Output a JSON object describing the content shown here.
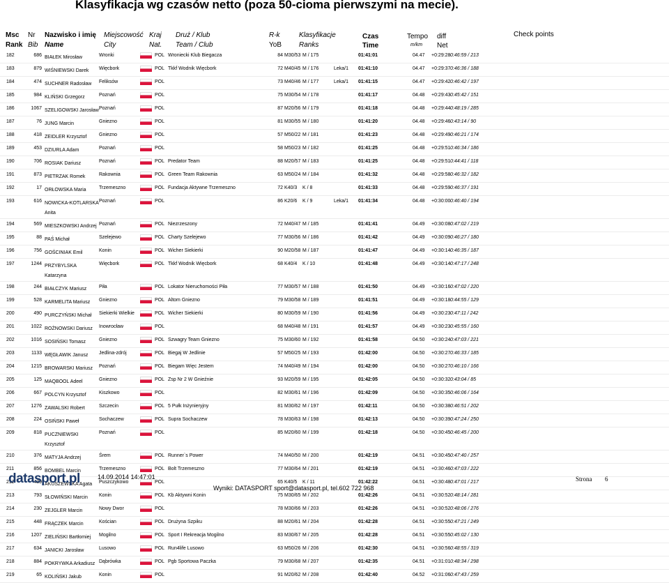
{
  "header": {
    "title": "Klasyfikacja wg czasów netto (poza 50-cioma pierwszymi na mecie)."
  },
  "columns": {
    "rank": {
      "top": "Msc",
      "bottom": "Rank"
    },
    "bib": {
      "top": "Nr",
      "bottom": "Bib"
    },
    "name": {
      "top": "Nazwisko i imię",
      "bottom": "Name"
    },
    "city": {
      "top": "Miejscowość",
      "bottom": "City"
    },
    "nat": {
      "top": "Kraj",
      "bottom": "Nat."
    },
    "club": {
      "top": "Druż / Klub",
      "bottom": "Team / Club"
    },
    "yob": {
      "top": "R-k",
      "bottom": "YoB"
    },
    "ranks": {
      "top": "Klasyfikacje",
      "bottom": "Ranks"
    },
    "time": {
      "top": "Czas",
      "bottom": "Time"
    },
    "pace": {
      "top": "Tempo",
      "bottom": "m/km"
    },
    "diff": {
      "top": "diff",
      "bottom": "Net"
    },
    "check": {
      "top": "Check points"
    }
  },
  "table": {
    "rows": [
      {
        "rank": "182",
        "bib": "686",
        "name": "BIAŁEK Mirosław",
        "city": "Wronki",
        "nat": "POL",
        "club": "Wroniecki Klub Biegacza",
        "yob": "84",
        "cat": "M30/53",
        "place": "M / 175",
        "time": "01:41:01",
        "pace": "04.47",
        "diff": "+0:29:28",
        "net": "0:46:59 / 213"
      },
      {
        "rank": "183",
        "bib": "879",
        "name": "WIŚNIEWSKI Darek",
        "city": "Więcbork",
        "nat": "POL",
        "club": "Tkkf Wodnik Więcbork",
        "yob": "72",
        "cat": "M40/45",
        "place": "M / 176",
        "note": "Leka/1",
        "time": "01:41:10",
        "pace": "04.47",
        "diff": "+0:29:37",
        "net": "0:46:36 / 188"
      },
      {
        "rank": "184",
        "bib": "474",
        "name": "SUCHNER Radosław",
        "city": "Feliksów",
        "nat": "POL",
        "yob": "73",
        "cat": "M40/46",
        "place": "M / 177",
        "note": "Leka/1",
        "time": "01:41:15",
        "pace": "04.47",
        "diff": "+0:29:42",
        "net": "0:46:42 / 197"
      },
      {
        "rank": "185",
        "bib": "984",
        "name": "KLIŃSKI Grzegorz",
        "city": "Poznań",
        "nat": "POL",
        "yob": "75",
        "cat": "M30/54",
        "place": "M / 178",
        "time": "01:41:17",
        "pace": "04.48",
        "diff": "+0:29:43",
        "net": "0:45:42 / 151"
      },
      {
        "rank": "186",
        "bib": "1067",
        "name": "SZELIGOWSKI Jarosław",
        "city": "Poznań",
        "nat": "POL",
        "yob": "87",
        "cat": "M20/56",
        "place": "M / 179",
        "time": "01:41:18",
        "pace": "04.48",
        "diff": "+0:29:44",
        "net": "0:48:19 / 285"
      },
      {
        "rank": "187",
        "bib": "76",
        "name": "JUNG Marcin",
        "city": "Gniezno",
        "nat": "POL",
        "yob": "81",
        "cat": "M30/55",
        "place": "M / 180",
        "time": "01:41:20",
        "pace": "04.48",
        "diff": "+0:29:46",
        "net": "0:43:14 / 90"
      },
      {
        "rank": "188",
        "bib": "418",
        "name": "ZEIDLER Krzysztof",
        "city": "Gniezno",
        "nat": "POL",
        "yob": "57",
        "cat": "M50/22",
        "place": "M / 181",
        "time": "01:41:23",
        "pace": "04.48",
        "diff": "+0:29:49",
        "net": "0:46:21 / 174"
      },
      {
        "rank": "189",
        "bib": "453",
        "name": "DZIURLA Adam",
        "city": "Poznań",
        "nat": "POL",
        "yob": "58",
        "cat": "M50/23",
        "place": "M / 182",
        "time": "01:41:25",
        "pace": "04.48",
        "diff": "+0:29:51",
        "net": "0:46:34 / 186"
      },
      {
        "rank": "190",
        "bib": "706",
        "name": "ROSIAK Dariusz",
        "city": "Poznań",
        "nat": "POL",
        "club": "Predator Team",
        "yob": "88",
        "cat": "M20/57",
        "place": "M / 183",
        "time": "01:41:25",
        "pace": "04.48",
        "diff": "+0:29:51",
        "net": "0:44:41 / 118"
      },
      {
        "rank": "191",
        "bib": "873",
        "name": "PIETRZAK Romek",
        "city": "Rakownia",
        "nat": "POL",
        "club": "Green Team Rakownia",
        "yob": "63",
        "cat": "M50/24",
        "place": "M / 184",
        "time": "01:41:32",
        "pace": "04.48",
        "diff": "+0:29:58",
        "net": "0:46:32 / 182"
      },
      {
        "rank": "192",
        "bib": "17",
        "name": "ORŁOWSKA Maria",
        "city": "Trzemeszno",
        "nat": "POL",
        "club": "Fundacja Aktywne Trzemeszno",
        "yob": "72",
        "cat": "K40/3",
        "place": "K / 8",
        "time": "01:41:33",
        "pace": "04.48",
        "diff": "+0:29:59",
        "net": "0:46:37 / 191"
      },
      {
        "rank": "193",
        "bib": "616",
        "name": "NOWICKA-KOTLARSKA Anita",
        "city": "Poznań",
        "nat": "POL",
        "yob": "86",
        "cat": "K20/6",
        "place": "K / 9",
        "note": "Leka/1",
        "time": "01:41:34",
        "pace": "04.48",
        "diff": "+0:30:00",
        "net": "0:46:40 / 194"
      },
      {
        "rank": "194",
        "bib": "569",
        "name": "MIESZKOWSKI Andrzej",
        "city": "Poznań",
        "nat": "POL",
        "club": "Niezrzeszony",
        "yob": "72",
        "cat": "M40/47",
        "place": "M / 185",
        "time": "01:41:41",
        "pace": "04.49",
        "diff": "+0:30:08",
        "net": "0:47:02 / 219"
      },
      {
        "rank": "195",
        "bib": "88",
        "name": "PAŚ Michał",
        "city": "Szelejewo",
        "nat": "POL",
        "club": "Charty Szelejewo",
        "yob": "77",
        "cat": "M30/56",
        "place": "M / 186",
        "time": "01:41:42",
        "pace": "04.49",
        "diff": "+0:30:09",
        "net": "0:46:27 / 180"
      },
      {
        "rank": "196",
        "bib": "756",
        "name": "GOŚCINIAK Emil",
        "city": "Konin",
        "nat": "POL",
        "club": "Wicher Siekierki",
        "yob": "90",
        "cat": "M20/58",
        "place": "M / 187",
        "time": "01:41:47",
        "pace": "04.49",
        "diff": "+0:30:14",
        "net": "0:46:35 / 187"
      },
      {
        "rank": "197",
        "bib": "1244",
        "name": "PRZYBYLSKA Katarzyna",
        "city": "Więcbork",
        "nat": "POL",
        "club": "Tkkf Wodnik Więcbork",
        "yob": "68",
        "cat": "K40/4",
        "place": "K / 10",
        "time": "01:41:48",
        "pace": "04.49",
        "diff": "+0:30:14",
        "net": "0:47:17 / 248"
      },
      {
        "rank": "198",
        "bib": "244",
        "name": "BIAŁCZYK Mariusz",
        "city": "Piła",
        "nat": "POL",
        "club": "Lokator Nieruchomości Piła",
        "yob": "77",
        "cat": "M30/57",
        "place": "M / 188",
        "time": "01:41:50",
        "pace": "04.49",
        "diff": "+0:30:16",
        "net": "0:47:02 / 220"
      },
      {
        "rank": "199",
        "bib": "528",
        "name": "KARMELITA Mariusz",
        "city": "Gniezno",
        "nat": "POL",
        "club": "Altom Gniezno",
        "yob": "79",
        "cat": "M30/58",
        "place": "M / 189",
        "time": "01:41:51",
        "pace": "04.49",
        "diff": "+0:30:18",
        "net": "0:44:55 / 129"
      },
      {
        "rank": "200",
        "bib": "490",
        "name": "PURCZYŃSKI Michał",
        "city": "Siekierki Wielkie",
        "nat": "POL",
        "club": "Wicher Siekierki",
        "yob": "80",
        "cat": "M30/59",
        "place": "M / 190",
        "time": "01:41:56",
        "pace": "04.49",
        "diff": "+0:30:23",
        "net": "0:47:11 / 242"
      },
      {
        "rank": "201",
        "bib": "1022",
        "name": "ROŻNOWSKI Dariusz",
        "city": "Inowrocław",
        "nat": "POL",
        "yob": "68",
        "cat": "M40/48",
        "place": "M / 191",
        "time": "01:41:57",
        "pace": "04.49",
        "diff": "+0:30:23",
        "net": "0:45:55 / 160"
      },
      {
        "rank": "202",
        "bib": "1016",
        "name": "SOSIŃSKI Tomasz",
        "city": "Gniezno",
        "nat": "POL",
        "club": "Szwagry Team Gniezno",
        "yob": "75",
        "cat": "M30/60",
        "place": "M / 192",
        "time": "01:41:58",
        "pace": "04.50",
        "diff": "+0:30:24",
        "net": "0:47:03 / 221"
      },
      {
        "rank": "203",
        "bib": "1133",
        "name": "WĘGŁAWIK Janusz",
        "city": "Jedlina-zdrój",
        "nat": "POL",
        "club": "Biegaj W Jedlinie",
        "yob": "57",
        "cat": "M50/25",
        "place": "M / 193",
        "time": "01:42:00",
        "pace": "04.50",
        "diff": "+0:30:27",
        "net": "0:46:33 / 185"
      },
      {
        "rank": "204",
        "bib": "1215",
        "name": "BROWARSKI Mariusz",
        "city": "Poznań",
        "nat": "POL",
        "club": "Biegam Więc Jestem",
        "yob": "74",
        "cat": "M40/49",
        "place": "M / 194",
        "time": "01:42:00",
        "pace": "04.50",
        "diff": "+0:30:27",
        "net": "0:46:10 / 166"
      },
      {
        "rank": "205",
        "bib": "125",
        "name": "MAQBOOL Adeel",
        "city": "Gniezno",
        "nat": "POL",
        "club": "Zsp Nr 2 W Gnieźnie",
        "yob": "93",
        "cat": "M20/59",
        "place": "M / 195",
        "time": "01:42:05",
        "pace": "04.50",
        "diff": "+0:30:32",
        "net": "0:43:04 / 85"
      },
      {
        "rank": "206",
        "bib": "667",
        "name": "POLCYN Krzysztof",
        "city": "Kiszkowo",
        "nat": "POL",
        "yob": "82",
        "cat": "M30/61",
        "place": "M / 196",
        "time": "01:42:09",
        "pace": "04.50",
        "diff": "+0:30:35",
        "net": "0:46:06 / 164"
      },
      {
        "rank": "207",
        "bib": "1276",
        "name": "ZAWALSKI Robert",
        "city": "Szczecin",
        "nat": "POL",
        "club": "5 Pułk Inżynieryjny",
        "yob": "81",
        "cat": "M30/62",
        "place": "M / 197",
        "time": "01:42:11",
        "pace": "04.50",
        "diff": "+0:30:38",
        "net": "0:46:51 / 202"
      },
      {
        "rank": "208",
        "bib": "224",
        "name": "OSIŃSKI Paweł",
        "city": "Sochaczew",
        "nat": "POL",
        "club": "Supra Sochaczew",
        "yob": "78",
        "cat": "M30/63",
        "place": "M / 198",
        "time": "01:42:13",
        "pace": "04.50",
        "diff": "+0:30:39",
        "net": "0:47:24 / 250"
      },
      {
        "rank": "209",
        "bib": "818",
        "name": "PUCZNIEWSKI Krzysztof",
        "city": "Poznań",
        "nat": "POL",
        "yob": "85",
        "cat": "M20/60",
        "place": "M / 199",
        "time": "01:42:18",
        "pace": "04.50",
        "diff": "+0:30:45",
        "net": "0:46:45 / 200"
      },
      {
        "rank": "210",
        "bib": "376",
        "name": "MATYJA Andrzej",
        "city": "Śrem",
        "nat": "POL",
        "club": "Runner`s Power",
        "yob": "74",
        "cat": "M40/50",
        "place": "M / 200",
        "time": "01:42:19",
        "pace": "04.51",
        "diff": "+0:30:45",
        "net": "0:47:40 / 257"
      },
      {
        "rank": "211",
        "bib": "856",
        "name": "BOMBEL Marcin",
        "city": "Trzemeszno",
        "nat": "POL",
        "club": "Bolt Trzemeszno",
        "yob": "77",
        "cat": "M30/64",
        "place": "M / 201",
        "time": "01:42:19",
        "pace": "04.51",
        "diff": "+0:30:46",
        "net": "0:47:03 / 222"
      },
      {
        "rank": "212",
        "bib": "439",
        "name": "AKUSZEWSKA Agata",
        "city": "Puszczykowo",
        "nat": "POL",
        "yob": "65",
        "cat": "K40/5",
        "place": "K / 11",
        "time": "01:42:22",
        "pace": "04.51",
        "diff": "+0:30:48",
        "net": "0:47:01 / 217"
      },
      {
        "rank": "213",
        "bib": "793",
        "name": "SŁOWIŃSKI Marcin",
        "city": "Konin",
        "nat": "POL",
        "club": "Kb Aktywni Konin",
        "yob": "75",
        "cat": "M30/65",
        "place": "M / 202",
        "time": "01:42:26",
        "pace": "04.51",
        "diff": "+0:30:52",
        "net": "0:48:14 / 281"
      },
      {
        "rank": "214",
        "bib": "230",
        "name": "ZEJGLER Marcin",
        "city": "Nowy Dwor",
        "nat": "POL",
        "yob": "78",
        "cat": "M30/66",
        "place": "M / 203",
        "time": "01:42:26",
        "pace": "04.51",
        "diff": "+0:30:52",
        "net": "0:48:06 / 276"
      },
      {
        "rank": "215",
        "bib": "448",
        "name": "FRĄCZEK Marcin",
        "city": "Kościan",
        "nat": "POL",
        "club": "Drużyna Szpiku",
        "yob": "88",
        "cat": "M20/61",
        "place": "M / 204",
        "time": "01:42:28",
        "pace": "04.51",
        "diff": "+0:30:55",
        "net": "0:47:21 / 249"
      },
      {
        "rank": "216",
        "bib": "1207",
        "name": "ZIELIŃSKI Bartłomiej",
        "city": "Mogilno",
        "nat": "POL",
        "club": "Sport I Rekreacja Mogilno",
        "yob": "83",
        "cat": "M30/67",
        "place": "M / 205",
        "time": "01:42:28",
        "pace": "04.51",
        "diff": "+0:30:55",
        "net": "0:45:02 / 130"
      },
      {
        "rank": "217",
        "bib": "634",
        "name": "JANICKI Jarosław",
        "city": "Lusowo",
        "nat": "POL",
        "club": "Run4life Lusowo",
        "yob": "63",
        "cat": "M50/26",
        "place": "M / 206",
        "time": "01:42:30",
        "pace": "04.51",
        "diff": "+0:30:56",
        "net": "0:48:55 / 319"
      },
      {
        "rank": "218",
        "bib": "884",
        "name": "POKRYWKA Arkadiusz",
        "city": "Dąbrówka",
        "nat": "POL",
        "club": "Pgb Sportowa Paczka",
        "yob": "79",
        "cat": "M30/68",
        "place": "M / 207",
        "time": "01:42:35",
        "pace": "04.51",
        "diff": "+0:31:01",
        "net": "0:48:34 / 298"
      },
      {
        "rank": "219",
        "bib": "65",
        "name": "KOLIŃSKI Jakub",
        "city": "Konin",
        "nat": "POL",
        "yob": "91",
        "cat": "M20/62",
        "place": "M / 208",
        "time": "01:42:40",
        "pace": "04.52",
        "diff": "+0:31:06",
        "net": "0:47:43 / 259"
      }
    ]
  },
  "footer": {
    "logo": "datasport.pl",
    "date": "14.09.2014 14:47:01",
    "contact": "Wyniki: DATASPORT sport@datasport.pl, tel.602 722 968",
    "page_label": "Strona",
    "page": "6"
  }
}
